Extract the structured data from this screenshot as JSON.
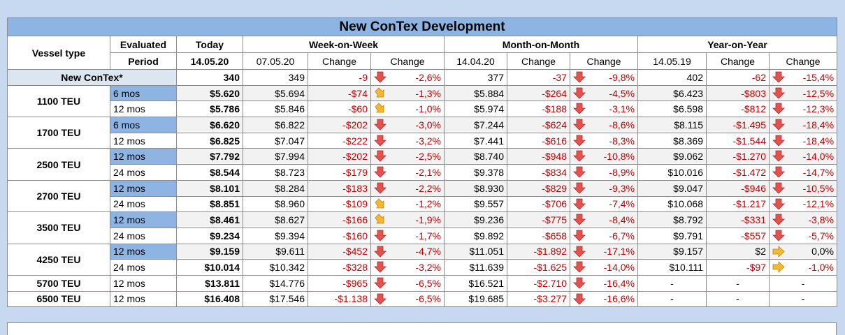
{
  "title": "New ConTex Development",
  "header": {
    "vessel_type": "Vessel type",
    "period": [
      "Evaluated",
      "Period"
    ],
    "today": [
      "Today",
      "14.05.20"
    ],
    "groups": [
      {
        "name": "Week-on-Week",
        "columns": [
          "07.05.20",
          "Change",
          "Change"
        ]
      },
      {
        "name": "Month-on-Month",
        "columns": [
          "14.04.20",
          "Change",
          "Change"
        ]
      },
      {
        "name": "Year-on-Year",
        "columns": [
          "14.05.19",
          "Change",
          "Change"
        ]
      }
    ]
  },
  "index_row": {
    "label": "New ConTex*",
    "cells": [
      "340",
      "349",
      "-9",
      "-2,6%",
      "377",
      "-37",
      "-9,8%",
      "402",
      "-62",
      "-15,4%"
    ]
  },
  "rows": [
    {
      "vessel": "1100 TEU",
      "periods": [
        {
          "period": "6 mos",
          "cells": [
            "$5.620",
            "$5.694",
            "-$74",
            "-1,3%",
            "$5.884",
            "-$264",
            "-4,5%",
            "$6.423",
            "-$803",
            "-12,5%"
          ]
        },
        {
          "period": "12 mos",
          "cells": [
            "$5.786",
            "$5.846",
            "-$60",
            "-1,0%",
            "$5.974",
            "-$188",
            "-3,1%",
            "$6.598",
            "-$812",
            "-12,3%"
          ]
        }
      ]
    },
    {
      "vessel": "1700 TEU",
      "periods": [
        {
          "period": "6 mos",
          "cells": [
            "$6.620",
            "$6.822",
            "-$202",
            "-3,0%",
            "$7.244",
            "-$624",
            "-8,6%",
            "$8.115",
            "-$1.495",
            "-18,4%"
          ]
        },
        {
          "period": "12 mos",
          "cells": [
            "$6.825",
            "$7.047",
            "-$222",
            "-3,2%",
            "$7.441",
            "-$616",
            "-8,3%",
            "$8.369",
            "-$1.544",
            "-18,4%"
          ]
        }
      ]
    },
    {
      "vessel": "2500 TEU",
      "periods": [
        {
          "period": "12 mos",
          "cells": [
            "$7.792",
            "$7.994",
            "-$202",
            "-2,5%",
            "$8.740",
            "-$948",
            "-10,8%",
            "$9.062",
            "-$1.270",
            "-14,0%"
          ]
        },
        {
          "period": "24 mos",
          "cells": [
            "$8.544",
            "$8.723",
            "-$179",
            "-2,1%",
            "$9.378",
            "-$834",
            "-8,9%",
            "$10.016",
            "-$1.472",
            "-14,7%"
          ]
        }
      ]
    },
    {
      "vessel": "2700 TEU",
      "periods": [
        {
          "period": "12 mos",
          "cells": [
            "$8.101",
            "$8.284",
            "-$183",
            "-2,2%",
            "$8.930",
            "-$829",
            "-9,3%",
            "$9.047",
            "-$946",
            "-10,5%"
          ]
        },
        {
          "period": "24 mos",
          "cells": [
            "$8.851",
            "$8.960",
            "-$109",
            "-1,2%",
            "$9.557",
            "-$706",
            "-7,4%",
            "$10.068",
            "-$1.217",
            "-12,1%"
          ]
        }
      ]
    },
    {
      "vessel": "3500 TEU",
      "periods": [
        {
          "period": "12 mos",
          "cells": [
            "$8.461",
            "$8.627",
            "-$166",
            "-1,9%",
            "$9.236",
            "-$775",
            "-8,4%",
            "$8.792",
            "-$331",
            "-3,8%"
          ]
        },
        {
          "period": "24 mos",
          "cells": [
            "$9.234",
            "$9.394",
            "-$160",
            "-1,7%",
            "$9.892",
            "-$658",
            "-6,7%",
            "$9.791",
            "-$557",
            "-5,7%"
          ]
        }
      ]
    },
    {
      "vessel": "4250 TEU",
      "periods": [
        {
          "period": "12 mos",
          "cells": [
            "$9.159",
            "$9.611",
            "-$452",
            "-4,7%",
            "$11.051",
            "-$1.892",
            "-17,1%",
            "$9.157",
            "$2",
            "0,0%"
          ]
        },
        {
          "period": "24 mos",
          "cells": [
            "$10.014",
            "$10.342",
            "-$328",
            "-3,2%",
            "$11.639",
            "-$1.625",
            "-14,0%",
            "$10.111",
            "-$97",
            "-1,0%"
          ]
        }
      ]
    },
    {
      "vessel": "5700 TEU",
      "periods": [
        {
          "period": "12 mos",
          "cells": [
            "$13.811",
            "$14.776",
            "-$965",
            "-6,5%",
            "$16.521",
            "-$2.710",
            "-16,4%",
            "-",
            "-",
            "-"
          ]
        }
      ]
    },
    {
      "vessel": "6500 TEU",
      "periods": [
        {
          "period": "12 mos",
          "cells": [
            "$16.408",
            "$17.546",
            "-$1.138",
            "-6,5%",
            "$19.685",
            "-$3.277",
            "-16,6%",
            "-",
            "-",
            "-"
          ]
        }
      ]
    }
  ]
}
